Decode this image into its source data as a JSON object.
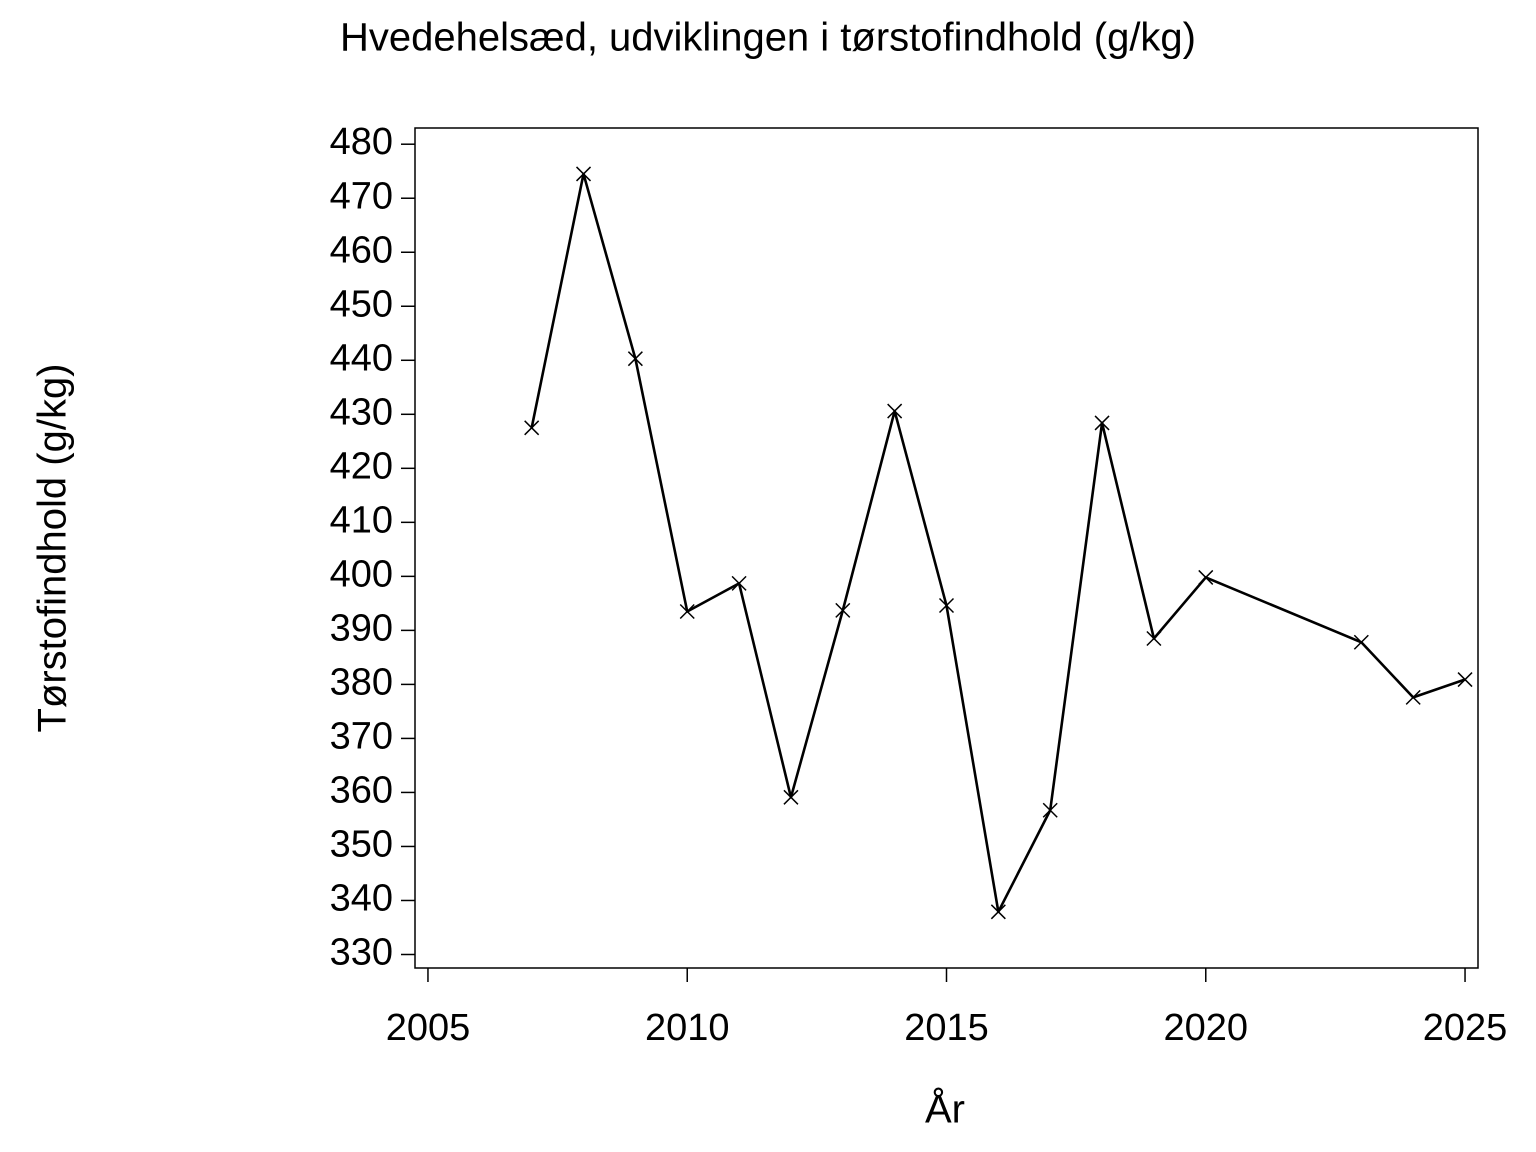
{
  "chart_data": {
    "type": "line",
    "title": "Hvedehelsæd,  udviklingen  i  tørstofindhold  (g/kg)",
    "x_label": "År",
    "y_label": "Tørstofindhold  (g/kg)",
    "x": [
      2007,
      2008,
      2009,
      2010,
      2011,
      2012,
      2013,
      2014,
      2015,
      2016,
      2017,
      2018,
      2019,
      2020,
      2023,
      2024,
      2025
    ],
    "series": [
      {
        "name": "Tørstofindhold",
        "color": "#000000",
        "values": [
          427.5,
          474.5,
          440.3,
          393.5,
          398.7,
          359.1,
          393.7,
          430.6,
          394.6,
          337.9,
          356.7,
          428.4,
          388.5,
          399.8,
          387.8,
          377.6,
          380.9
        ]
      }
    ],
    "xlim": [
      2004.75,
      2025.25
    ],
    "xticks": [
      2005,
      2010,
      2015,
      2020,
      2025
    ],
    "ylim": [
      327.5,
      483
    ],
    "yticks": [
      330,
      340,
      350,
      360,
      370,
      380,
      390,
      400,
      410,
      420,
      430,
      440,
      450,
      460,
      470,
      480
    ],
    "marker": "x",
    "grid": false
  }
}
